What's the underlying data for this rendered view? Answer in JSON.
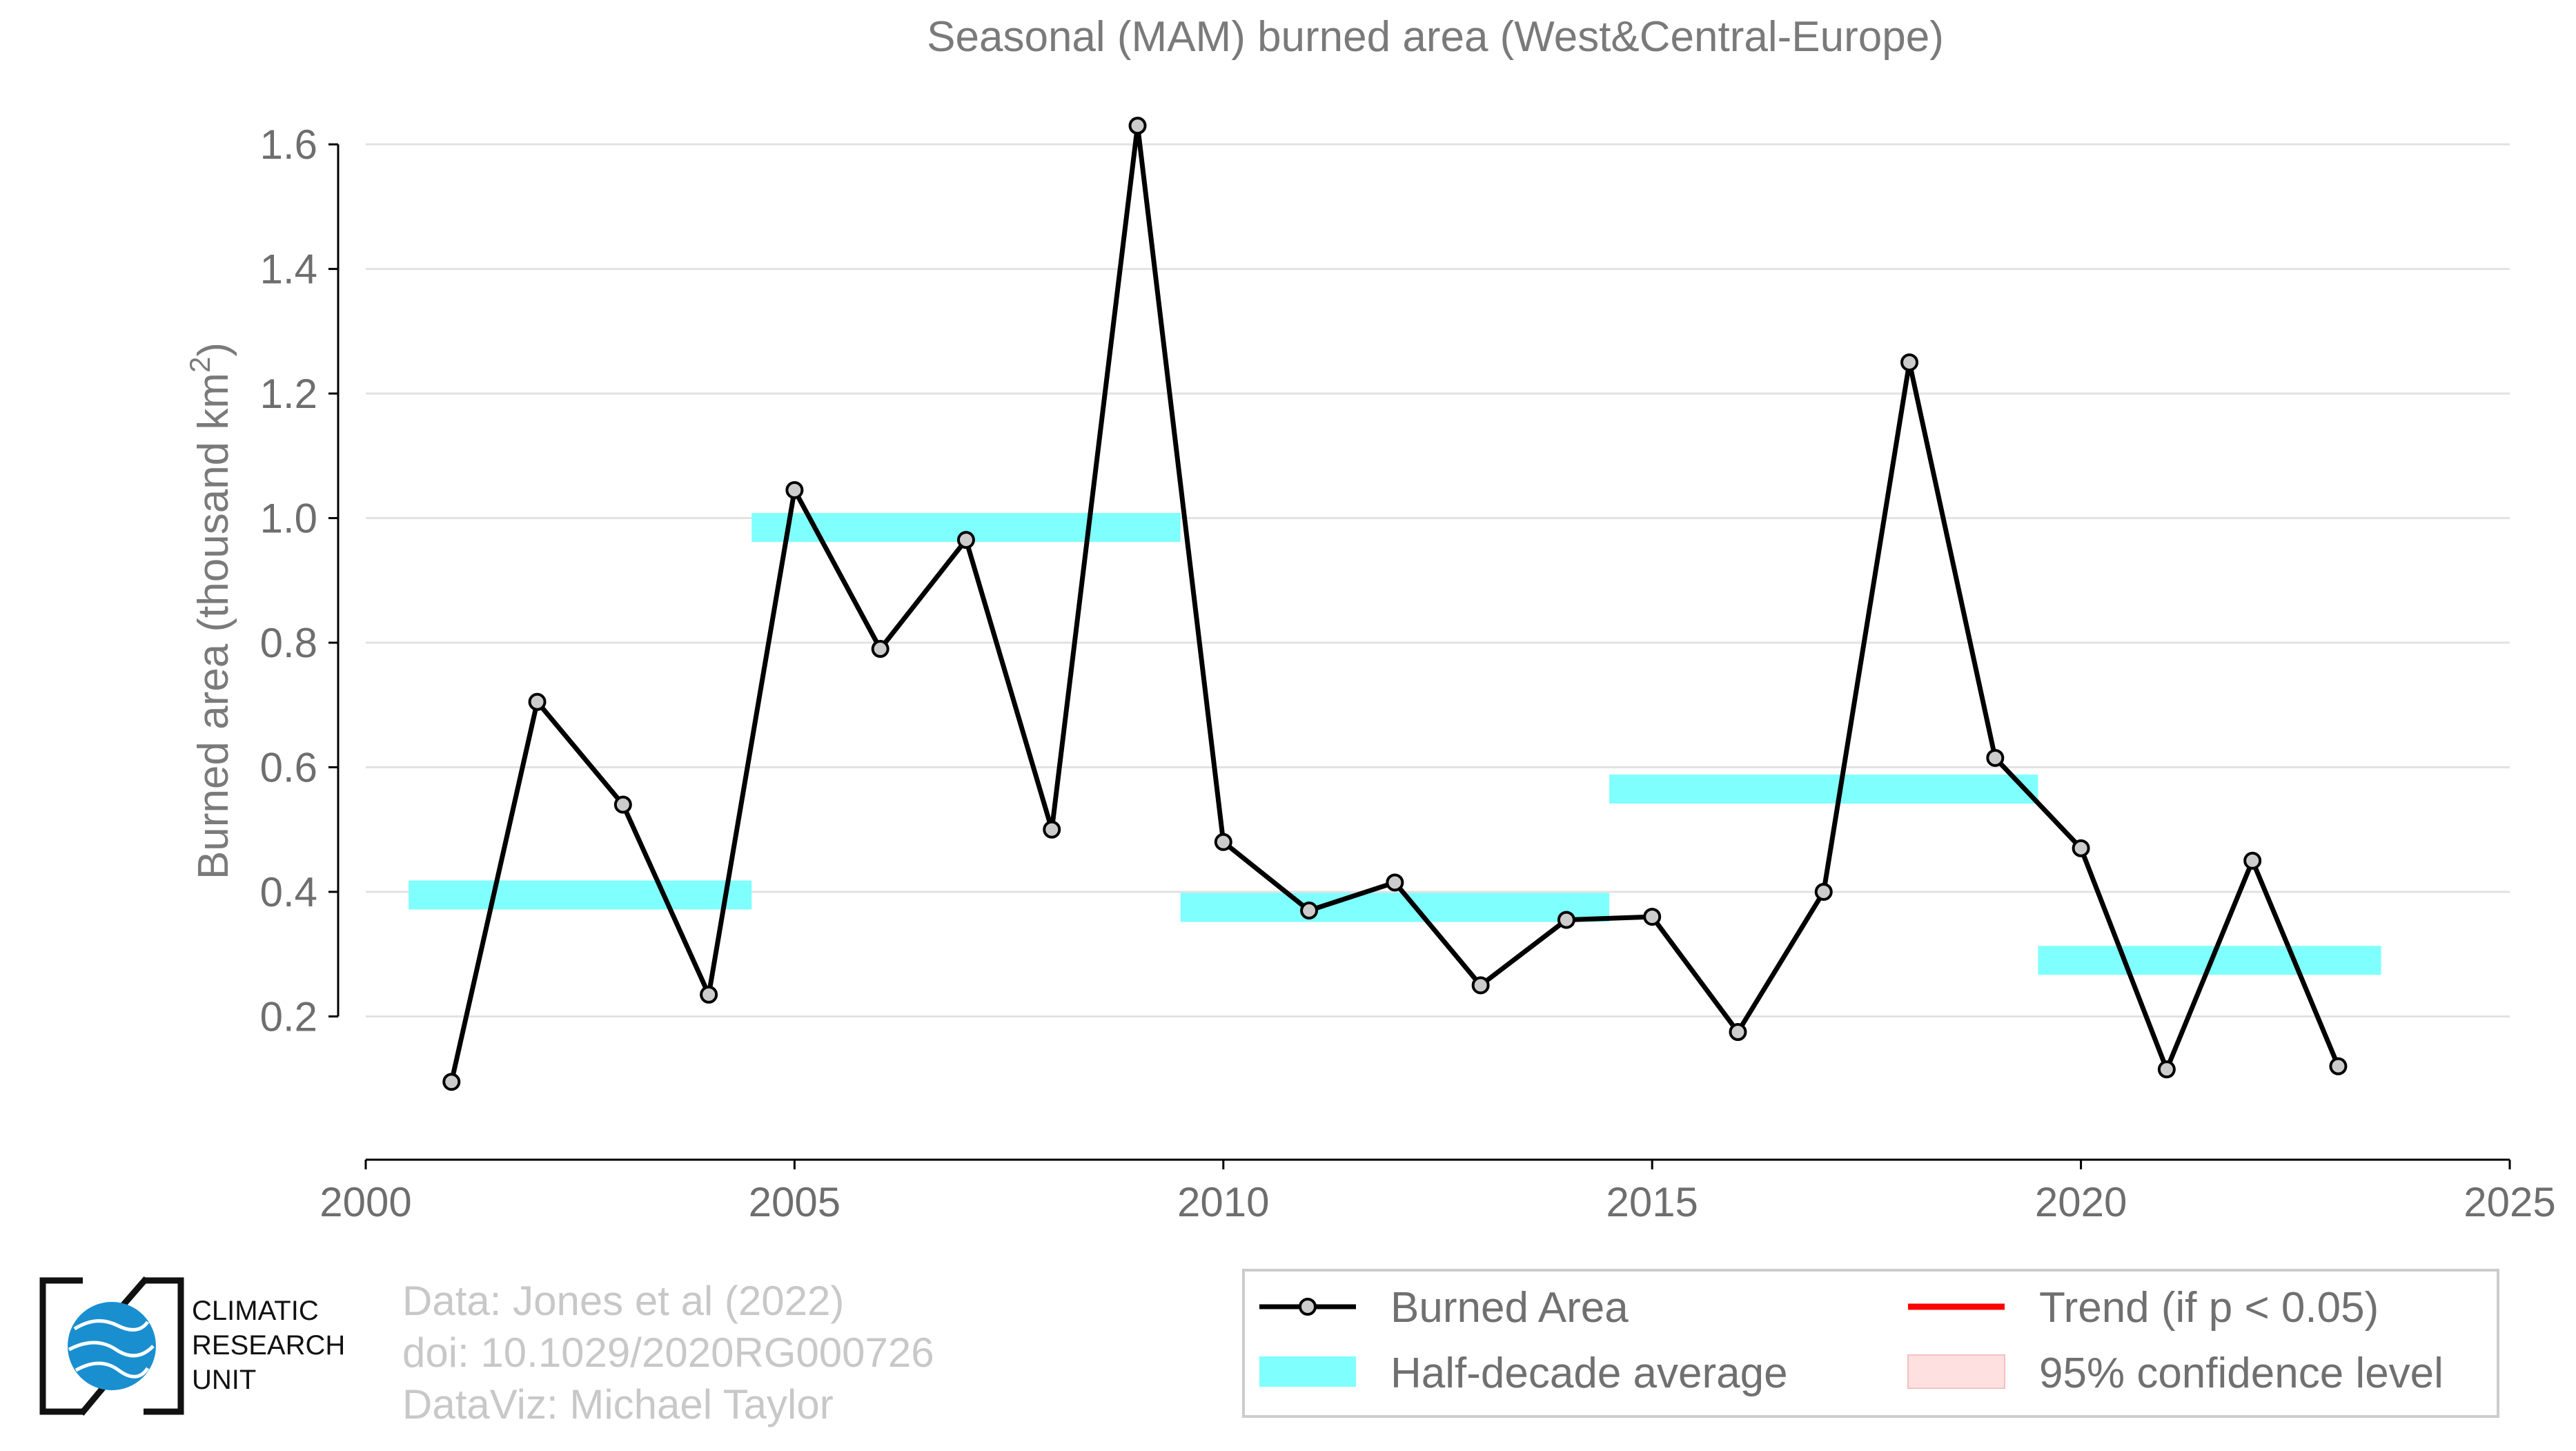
{
  "chart_data": {
    "type": "line",
    "title": "Seasonal (MAM) burned area (West&Central-Europe)",
    "ylabel": "Burned area (thousand km",
    "ylabel_sup": "2",
    "ylabel_end": ")",
    "xlim": [
      2000,
      2025
    ],
    "ylim": [
      -0.03,
      1.66
    ],
    "xticks": [
      2000,
      2005,
      2010,
      2015,
      2020,
      2025
    ],
    "xtick_labels": [
      "2000",
      "2005",
      "2010",
      "2015",
      "2020",
      "2025"
    ],
    "yticks": [
      0.2,
      0.4,
      0.6,
      0.8,
      1.0,
      1.2,
      1.4,
      1.6
    ],
    "ytick_labels": [
      "0.2",
      "0.4",
      "0.6",
      "0.8",
      "1.0",
      "1.2",
      "1.4",
      "1.6"
    ],
    "grid": "horizontal",
    "series": [
      {
        "name": "Burned Area",
        "color": "#000000",
        "marker_fill": "#cccccc",
        "x": [
          2001,
          2002,
          2003,
          2004,
          2005,
          2006,
          2007,
          2008,
          2009,
          2010,
          2011,
          2012,
          2013,
          2014,
          2015,
          2016,
          2017,
          2018,
          2019,
          2020,
          2021,
          2022,
          2023
        ],
        "y": [
          0.095,
          0.705,
          0.54,
          0.235,
          1.045,
          0.79,
          0.965,
          0.5,
          1.63,
          0.48,
          0.37,
          0.415,
          0.25,
          0.355,
          0.36,
          0.175,
          0.4,
          1.25,
          0.615,
          0.47,
          0.115,
          0.45,
          0.12
        ]
      }
    ],
    "half_decade": {
      "name": "Half-decade average",
      "color": "#80ffff",
      "segments": [
        {
          "x0": 2000.5,
          "x1": 2004.5,
          "y": 0.395
        },
        {
          "x0": 2004.5,
          "x1": 2009.5,
          "y": 0.985
        },
        {
          "x0": 2009.5,
          "x1": 2014.5,
          "y": 0.375
        },
        {
          "x0": 2014.5,
          "x1": 2019.5,
          "y": 0.565
        },
        {
          "x0": 2019.5,
          "x1": 2023.5,
          "y": 0.29
        }
      ]
    },
    "legend": {
      "placement": "bottom-right",
      "entries": [
        "Burned Area",
        "Trend (if p < 0.05)",
        "Half-decade average",
        "95% confidence level"
      ],
      "trend_color": "#ff0000",
      "ci_color": "#ffe0e0"
    }
  },
  "credits": {
    "line1": "Data: Jones et al (2022)",
    "line2": "doi: 10.1029/2020RG000726",
    "line3": "DataViz: Michael Taylor"
  },
  "logo": {
    "line1": "CLIMATIC",
    "line2": "RESEARCH",
    "line3": "UNIT",
    "globe_color": "#1a8fd0"
  }
}
